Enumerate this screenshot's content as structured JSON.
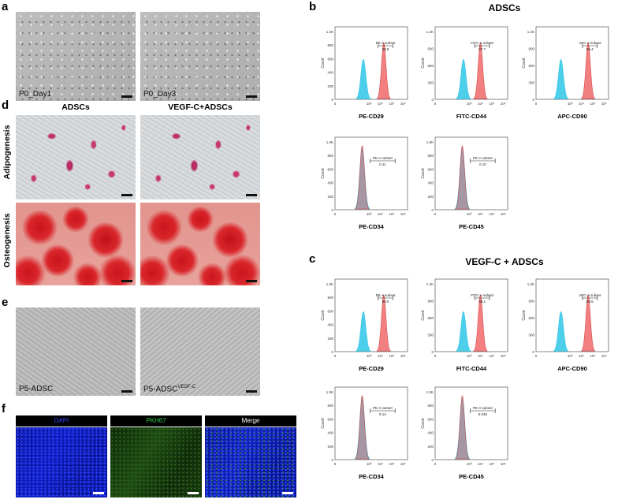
{
  "panels": {
    "a": {
      "label": "a",
      "images": [
        {
          "caption": "P0_Day1"
        },
        {
          "caption": "P0_Day3"
        }
      ]
    },
    "b": {
      "label": "b",
      "title": "ADSCs"
    },
    "c": {
      "label": "c",
      "title": "VEGF-C + ADSCs"
    },
    "d": {
      "label": "d",
      "col_headers": [
        "ADSCs",
        "VEGF-C+ADSCs"
      ],
      "row_labels": [
        "Adipogenesis",
        "Osteogenesis"
      ]
    },
    "e": {
      "label": "e",
      "images": [
        {
          "caption": "P5-ADSC"
        },
        {
          "caption_main": "P5-ADSC",
          "caption_sup": "VEGF-C"
        }
      ]
    },
    "f": {
      "label": "f",
      "headers": [
        "DAPI",
        "PKH67",
        "Merge"
      ],
      "header_colors": [
        "#3344ff",
        "#2fc94a",
        "#ffffff"
      ]
    }
  },
  "chart_data": [
    {
      "type": "histogram",
      "panel": "b",
      "xlabel": "PE-CD29",
      "ylabel": "Count",
      "gate_label": "PE-A subset",
      "gate_value": "99.5",
      "yticks": [
        "0",
        "200",
        "400",
        "600",
        "800",
        "1.0K"
      ],
      "control_peak_log": 2.5,
      "sample_peak_log": 4.3
    },
    {
      "type": "histogram",
      "panel": "b",
      "xlabel": "FITC-CD44",
      "ylabel": "Count",
      "gate_label": "FITC-A subset",
      "gate_value": "97.7",
      "yticks": [
        "0",
        "300",
        "600",
        "900",
        "1.2K"
      ],
      "control_peak_log": 2.5,
      "sample_peak_log": 4.0
    },
    {
      "type": "histogram",
      "panel": "b",
      "xlabel": "APC-CD90",
      "ylabel": "Count",
      "gate_label": "APC-A subset",
      "gate_value": "99.4",
      "yticks": [
        "0",
        "300",
        "600",
        "900",
        "1.2K"
      ],
      "control_peak_log": 2.2,
      "sample_peak_log": 4.6
    },
    {
      "type": "histogram",
      "panel": "b",
      "xlabel": "PE-CD34",
      "ylabel": "Count",
      "gate_label": "PE-A subset",
      "gate_value": "0.11",
      "yticks": [
        "0",
        "200",
        "400",
        "600",
        "800",
        "1.0K"
      ],
      "control_peak_log": 2.4,
      "sample_peak_log": 2.4
    },
    {
      "type": "histogram",
      "panel": "b",
      "xlabel": "PE-CD45",
      "ylabel": "Count",
      "gate_label": "PE-A subset",
      "gate_value": "0.10",
      "yticks": [
        "0",
        "200",
        "400",
        "600",
        "800",
        "1.0K"
      ],
      "control_peak_log": 2.4,
      "sample_peak_log": 2.4
    },
    {
      "type": "histogram",
      "panel": "c",
      "xlabel": "PE-CD29",
      "ylabel": "Count",
      "gate_label": "PE-A subset",
      "gate_value": "99.0",
      "yticks": [
        "0",
        "200",
        "400",
        "600",
        "800",
        "1.0K"
      ],
      "control_peak_log": 2.5,
      "sample_peak_log": 4.3
    },
    {
      "type": "histogram",
      "panel": "c",
      "xlabel": "FITC-CD44",
      "ylabel": "Count",
      "gate_label": "FITC-A subset",
      "gate_value": "98.1",
      "yticks": [
        "0",
        "300",
        "600",
        "900",
        "1.2K"
      ],
      "control_peak_log": 2.5,
      "sample_peak_log": 4.0
    },
    {
      "type": "histogram",
      "panel": "c",
      "xlabel": "APC-CD90",
      "ylabel": "Count",
      "gate_label": "APC-A subset",
      "gate_value": "99.5",
      "yticks": [
        "0",
        "300",
        "600",
        "900",
        "1.2K"
      ],
      "control_peak_log": 2.2,
      "sample_peak_log": 4.6
    },
    {
      "type": "histogram",
      "panel": "c",
      "xlabel": "PE-CD34",
      "ylabel": "Count",
      "gate_label": "PE-A subset",
      "gate_value": "0.14",
      "yticks": [
        "0",
        "200",
        "400",
        "600",
        "800",
        "1.0K"
      ],
      "control_peak_log": 2.4,
      "sample_peak_log": 2.4
    },
    {
      "type": "histogram",
      "panel": "c",
      "xlabel": "PE-CD45",
      "ylabel": "Count",
      "gate_label": "PE-A subset",
      "gate_value": "0.045",
      "yticks": [
        "0",
        "200",
        "400",
        "600",
        "800",
        "1.0K"
      ],
      "control_peak_log": 2.4,
      "sample_peak_log": 2.4
    }
  ],
  "axis": {
    "xticks": [
      "0",
      "10³",
      "10⁴",
      "10⁵",
      "10⁶"
    ]
  },
  "colors": {
    "control": "#2ec6e6",
    "sample": "#f06a6a",
    "gate": "#222222"
  }
}
